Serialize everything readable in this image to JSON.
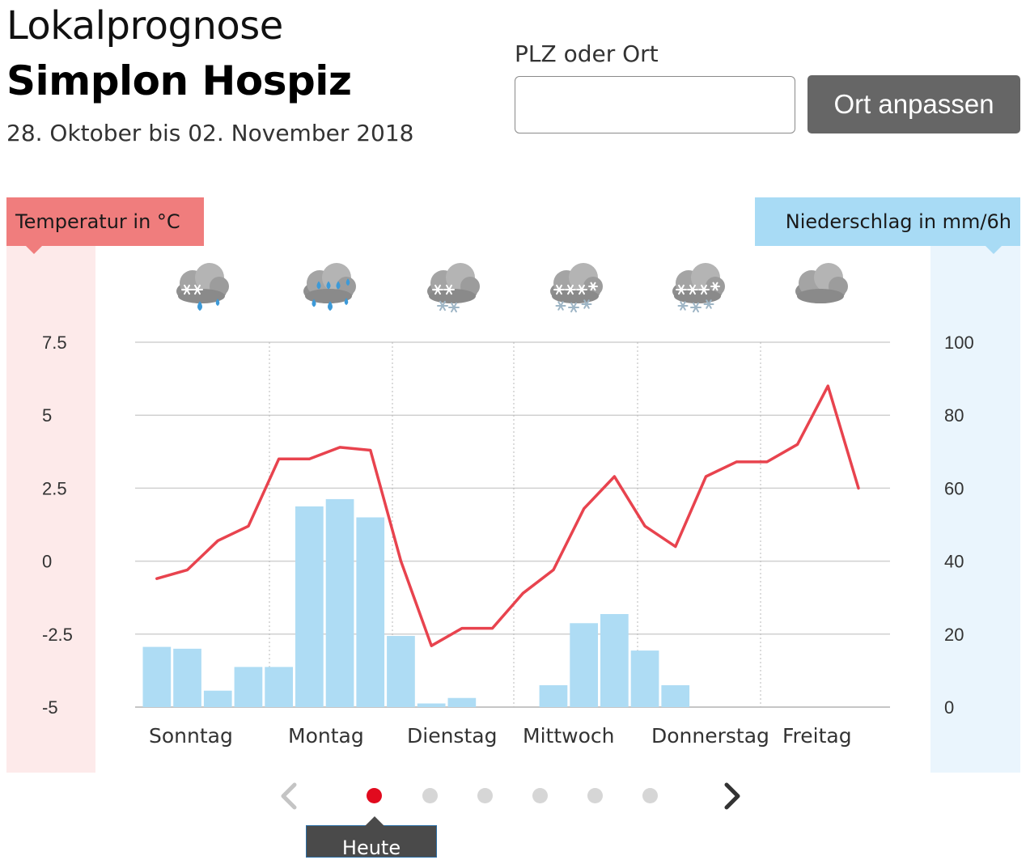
{
  "header": {
    "kicker": "Lokalprognose",
    "location": "Simplon Hospiz",
    "date_range": "28. Oktober bis 02. November 2018"
  },
  "search": {
    "label": "PLZ oder Ort",
    "value": "",
    "placeholder": "",
    "button_label": "Ort anpassen"
  },
  "colors": {
    "temperature": "#e8434e",
    "precipitation": "#aedcf4",
    "brand_red": "#e10a1e"
  },
  "pager": {
    "tooltip": "Heute",
    "dot_count": 6,
    "active_index": 0,
    "prev_icon": "chevron-left-icon",
    "next_icon": "chevron-right-icon"
  },
  "chart_data": {
    "type": "line+bar",
    "grid": true,
    "temperature_axis": {
      "label": "Temperatur in °C",
      "side": "left",
      "ticks": [
        "7.5",
        "5",
        "2.5",
        "0",
        "-2.5",
        "-5"
      ],
      "range": [
        -5,
        7.5
      ]
    },
    "precipitation_axis": {
      "label": "Niederschlag in mm/6h",
      "side": "right",
      "ticks": [
        "100",
        "80",
        "60",
        "40",
        "20",
        "0"
      ],
      "range": [
        0,
        100
      ]
    },
    "days": [
      {
        "name": "Sonntag",
        "icon": "rain-snow-cloud-icon"
      },
      {
        "name": "Montag",
        "icon": "rain-cloud-icon"
      },
      {
        "name": "Dienstag",
        "icon": "snow-light-cloud-icon"
      },
      {
        "name": "Mittwoch",
        "icon": "snow-cloud-icon"
      },
      {
        "name": "Donnerstag",
        "icon": "snow-cloud-icon"
      },
      {
        "name": "Freitag",
        "icon": "cloud-icon"
      }
    ],
    "temperature": {
      "name": "Temperatur",
      "values": [
        -0.6,
        -0.3,
        0.7,
        1.2,
        3.5,
        3.5,
        3.9,
        3.8,
        0.0,
        -2.9,
        -2.3,
        -2.3,
        -1.1,
        -0.3,
        1.8,
        2.9,
        1.2,
        0.5,
        2.9,
        3.4,
        3.4,
        4.0,
        6.0,
        2.5
      ]
    },
    "precipitation": {
      "name": "Niederschlag",
      "values": [
        16.5,
        16,
        4.5,
        11,
        11,
        55,
        57,
        52,
        19.5,
        1,
        2.5,
        0,
        0,
        6,
        23,
        25.5,
        15.5,
        6,
        0,
        0,
        0,
        0,
        0,
        0
      ]
    }
  }
}
